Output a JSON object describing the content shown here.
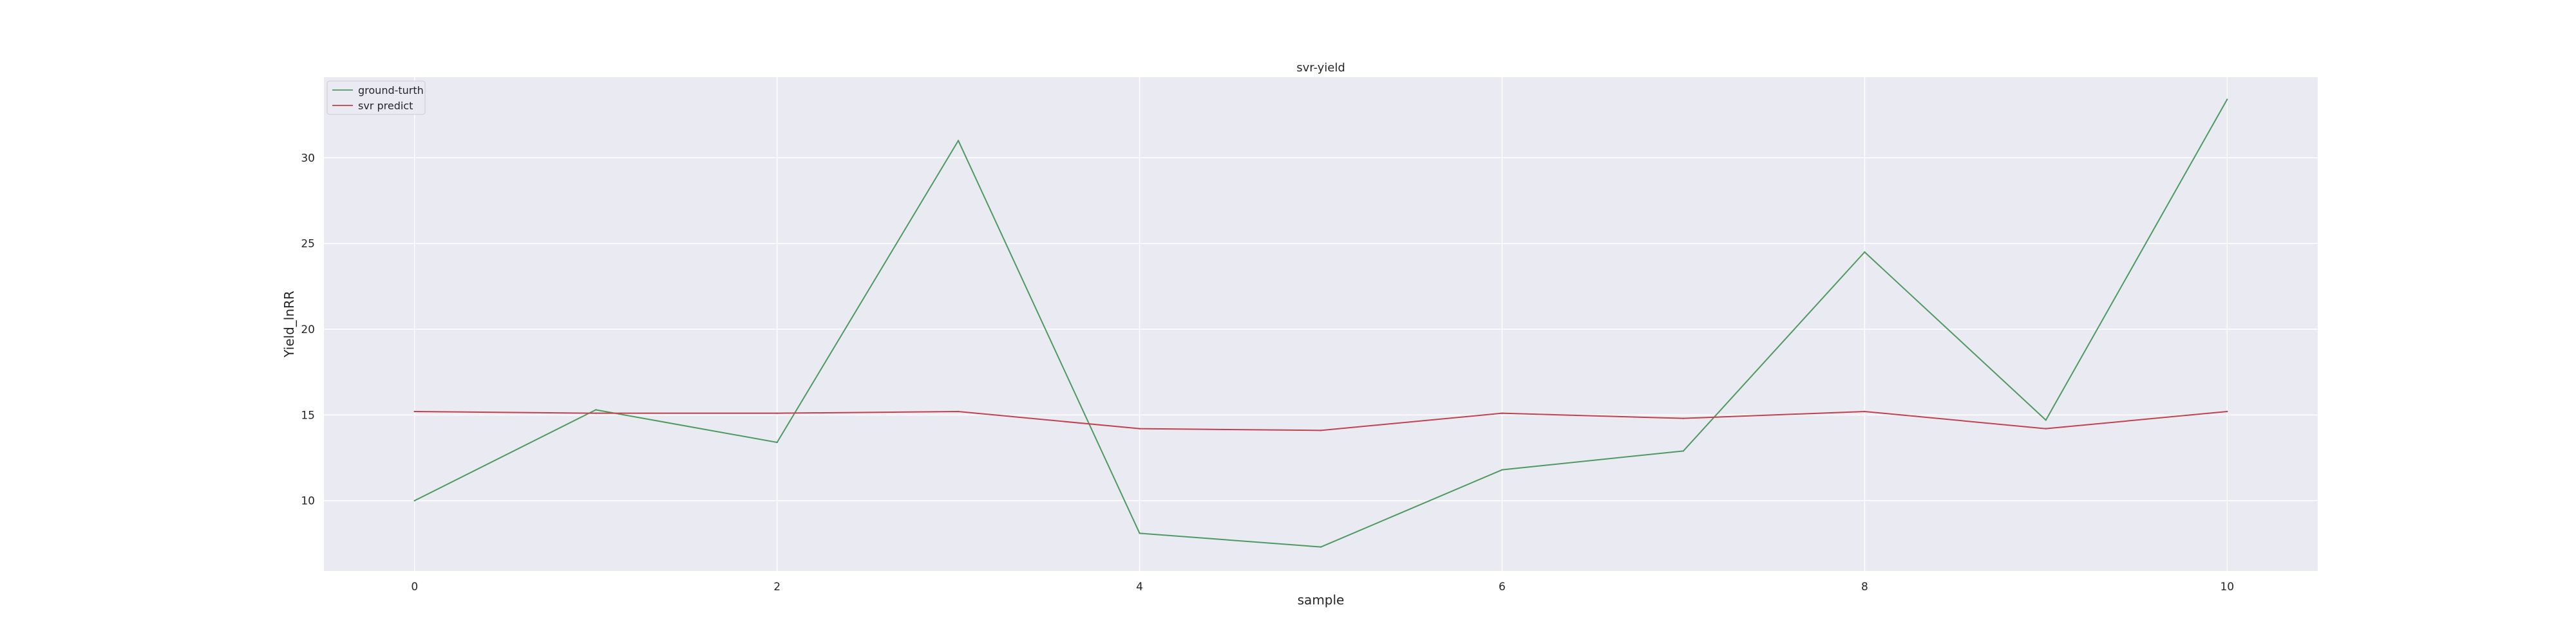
{
  "chart_data": {
    "type": "line",
    "title": "svr-yield",
    "xlabel": "sample",
    "ylabel": "Yield_lnRR",
    "x": [
      0,
      1,
      2,
      3,
      4,
      5,
      6,
      7,
      8,
      9,
      10
    ],
    "xlim": [
      -0.5,
      10.5
    ],
    "ylim": [
      5.9,
      34.7
    ],
    "xticks": [
      0,
      2,
      4,
      6,
      8,
      10
    ],
    "yticks": [
      10,
      15,
      20,
      25,
      30
    ],
    "grid": true,
    "legend_position": "top-left",
    "series": [
      {
        "name": "ground-turth",
        "color": "#4c9a5e",
        "values": [
          10.0,
          15.3,
          13.4,
          31.0,
          8.1,
          7.3,
          11.8,
          12.9,
          24.5,
          14.7,
          33.4
        ]
      },
      {
        "name": "svr predict",
        "color": "#c0424e",
        "values": [
          15.2,
          15.1,
          15.1,
          15.2,
          14.2,
          14.1,
          15.1,
          14.8,
          15.2,
          14.2,
          15.2
        ]
      }
    ]
  }
}
